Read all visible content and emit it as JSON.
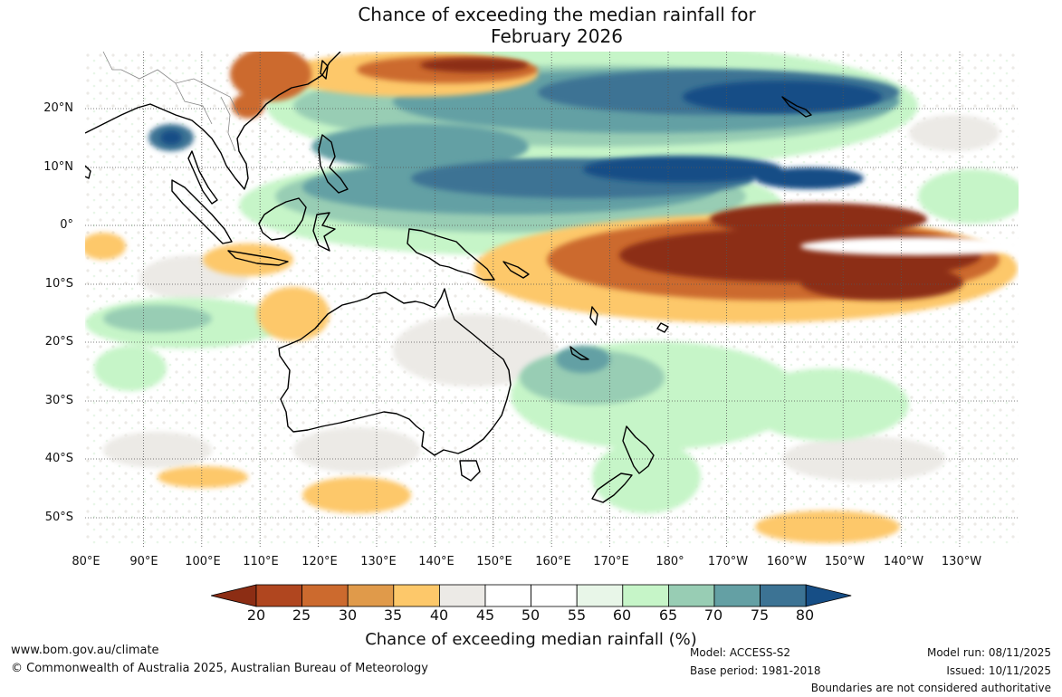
{
  "title_line1": "Chance of exceeding the median rainfall for",
  "title_line2": "February 2026",
  "lat_labels": [
    "20°N",
    "10°N",
    "0°",
    "10°S",
    "20°S",
    "30°S",
    "40°S",
    "50°S"
  ],
  "lon_labels": [
    "80°E",
    "90°E",
    "100°E",
    "110°E",
    "120°E",
    "130°E",
    "140°E",
    "150°E",
    "160°E",
    "170°E",
    "180°",
    "170°W",
    "160°W",
    "150°W",
    "140°W",
    "130°W"
  ],
  "colorbar": {
    "ticks": [
      "20",
      "25",
      "30",
      "35",
      "40",
      "45",
      "50",
      "55",
      "60",
      "65",
      "70",
      "75",
      "80"
    ],
    "colors": [
      "#8c2d14",
      "#b0461f",
      "#cc6a2e",
      "#e09a4a",
      "#fdc86a",
      "#eceae6",
      "#ffffff",
      "#ffffff",
      "#e8f6e8",
      "#c6f5c8",
      "#98cdb4",
      "#64a0a4",
      "#3c7394",
      "#164e86"
    ],
    "label": "Chance of exceeding median rainfall (%)"
  },
  "footer": {
    "url": "www.bom.gov.au/climate",
    "copyright": "© Commonwealth of Australia 2025, Australian Bureau of Meteorology",
    "model": "Model: ACCESS-S2",
    "base_period": "Base period: 1981-2018",
    "model_run": "Model run: 08/11/2025",
    "issued": "Issued: 10/11/2025",
    "disclaimer": "Boundaries are not considered authoritative"
  }
}
